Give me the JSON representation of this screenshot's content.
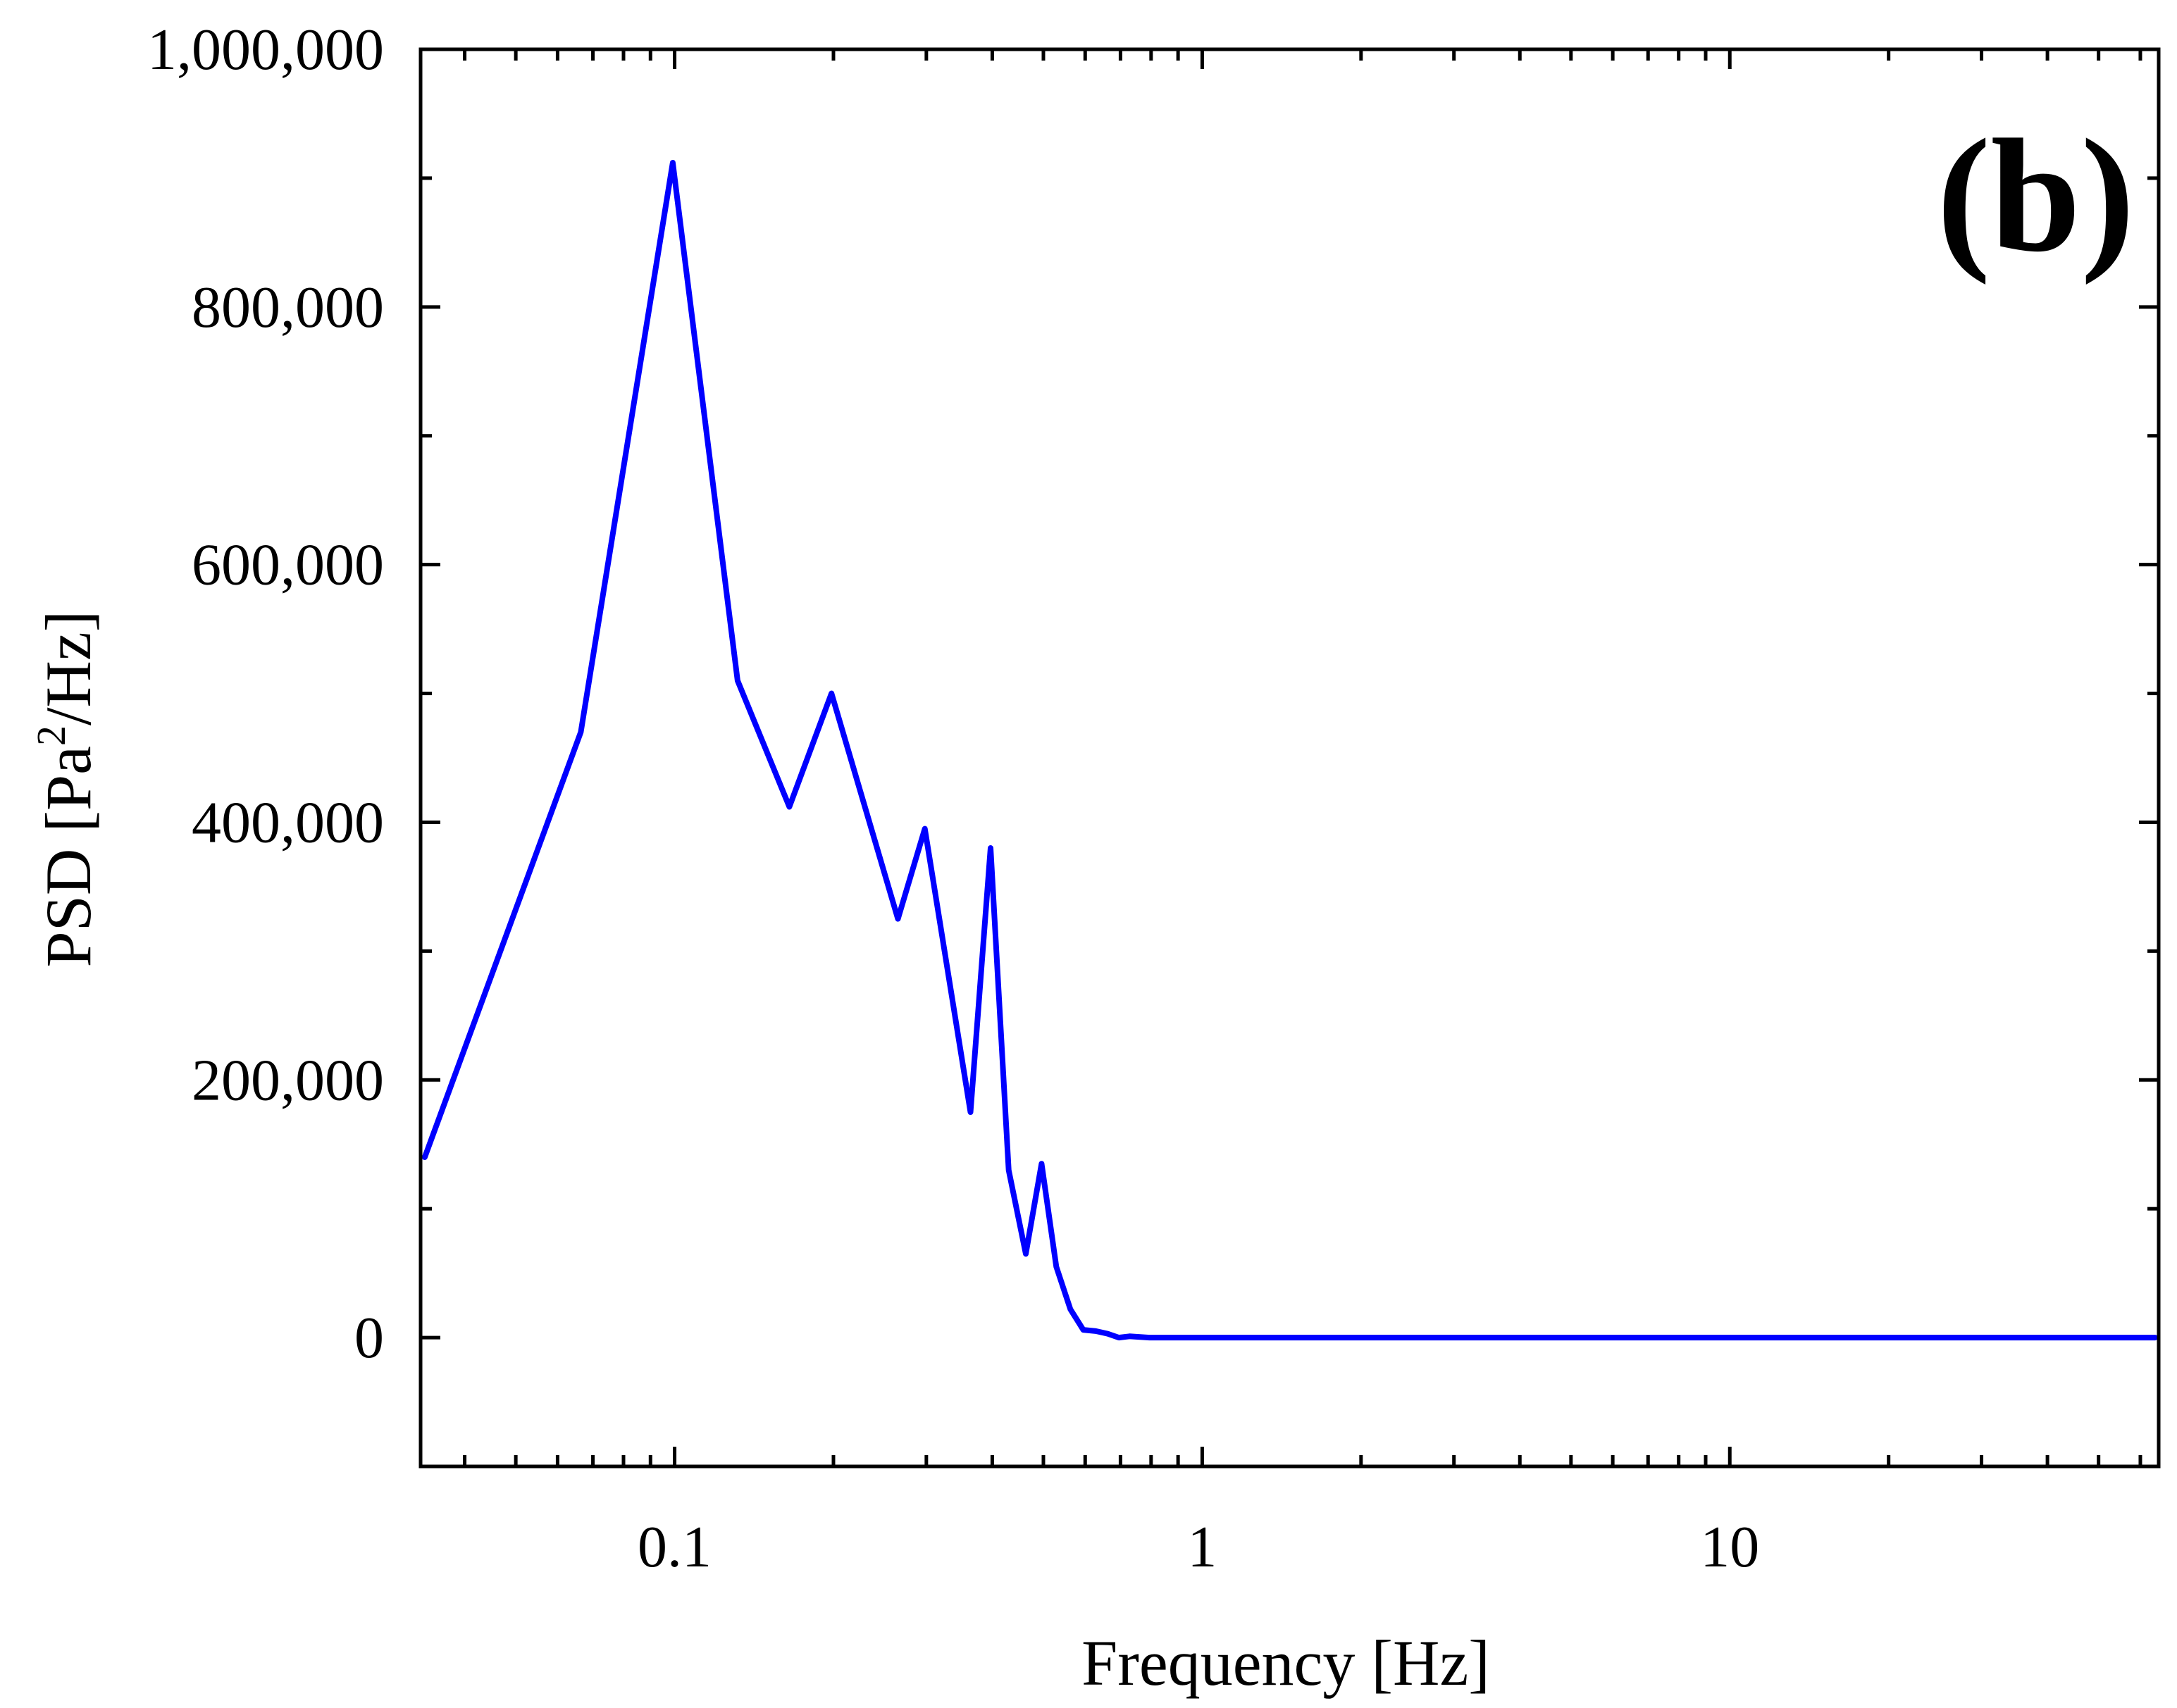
{
  "chart_data": {
    "type": "line",
    "panel_label": "(b)",
    "xlabel": "Frequency [Hz]",
    "ylabel": {
      "prefix": "PSD [Pa",
      "superscript": "2",
      "suffix": "/Hz]"
    },
    "x_scale": "log",
    "xlim": [
      0.033,
      65
    ],
    "ylim": [
      -100000,
      1000000
    ],
    "x_ticks": [
      {
        "value": 0.1,
        "label": "0.1"
      },
      {
        "value": 1,
        "label": "1"
      },
      {
        "value": 10,
        "label": "10"
      }
    ],
    "y_ticks": [
      {
        "value": 0,
        "label": "0"
      },
      {
        "value": 200000,
        "label": "200,000"
      },
      {
        "value": 400000,
        "label": "400,000"
      },
      {
        "value": 600000,
        "label": "600,000"
      },
      {
        "value": 800000,
        "label": "800,000"
      },
      {
        "value": 1000000,
        "label": "1,000,000"
      }
    ],
    "grid": false,
    "legend": "none",
    "series": [
      {
        "color": "#0000ff",
        "x": [
          0.0336,
          0.0664,
          0.0992,
          0.1316,
          0.165,
          0.1983,
          0.265,
          0.298,
          0.3637,
          0.397,
          0.4297,
          0.463,
          0.496,
          0.529,
          0.5625,
          0.595,
          0.6285,
          0.6619,
          0.695,
          0.728,
          0.794,
          1.0,
          2.0,
          5.0,
          10.0,
          20.0,
          40.0,
          64.0
        ],
        "y": [
          140000,
          470000,
          912000,
          510000,
          412000,
          500000,
          325000,
          395000,
          175000,
          380000,
          130000,
          65000,
          135000,
          55000,
          22000,
          6000,
          5000,
          3000,
          0,
          1000,
          0,
          0,
          0,
          0,
          0,
          0,
          0,
          0
        ]
      }
    ]
  }
}
